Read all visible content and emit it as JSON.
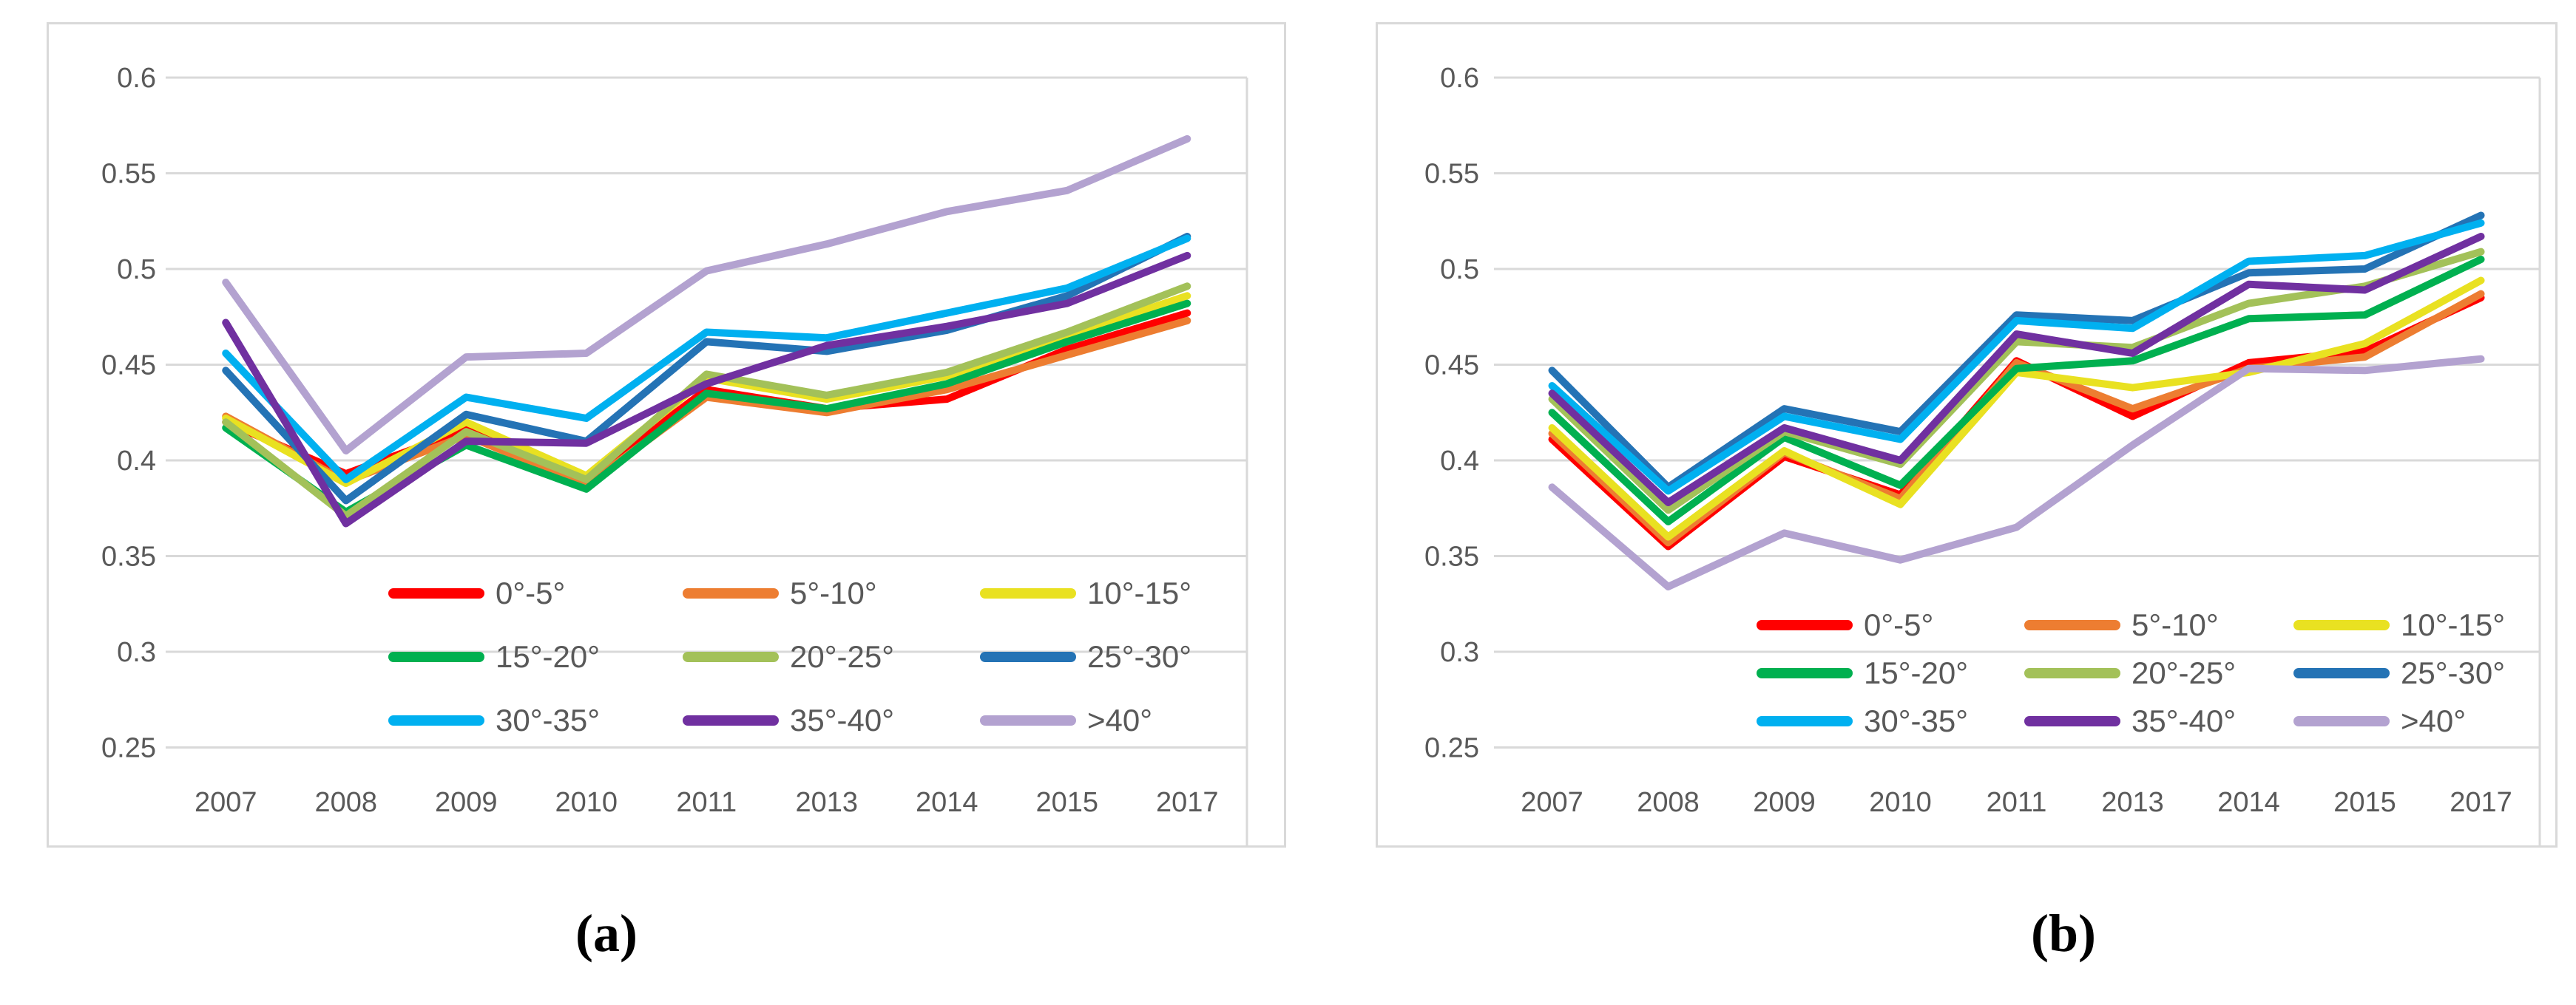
{
  "figure": {
    "background": "#ffffff",
    "grid_color": "#D9D9D9",
    "border_color": "#D9D9D9",
    "tick_color": "#595959",
    "caption_a": "(a)",
    "caption_b": "(b)"
  },
  "chart_data": [
    {
      "id": "a",
      "type": "line",
      "title": "",
      "xlabel": "",
      "ylabel": "",
      "grid": true,
      "legend_position": "inside-bottom",
      "ylim": [
        0.25,
        0.6
      ],
      "y_ticks": [
        "0.6",
        "0.55",
        "0.5",
        "0.45",
        "0.4",
        "0.35",
        "0.3",
        "0.25"
      ],
      "x_categories": [
        "2007",
        "2008",
        "2009",
        "2010",
        "2011",
        "2013",
        "2014",
        "2015",
        "2017"
      ],
      "series": [
        {
          "name": "0°-5°",
          "color": "#FF0000",
          "values": [
            0.42,
            0.393,
            0.416,
            0.39,
            0.437,
            0.427,
            0.432,
            0.458,
            0.477
          ]
        },
        {
          "name": "5°-10°",
          "color": "#ED7D31",
          "values": [
            0.423,
            0.389,
            0.413,
            0.387,
            0.433,
            0.425,
            0.437,
            0.455,
            0.473
          ]
        },
        {
          "name": "10°-15°",
          "color": "#E9E121",
          "values": [
            0.422,
            0.388,
            0.42,
            0.392,
            0.443,
            0.432,
            0.444,
            0.465,
            0.486
          ]
        },
        {
          "name": "15°-20°",
          "color": "#00B050",
          "values": [
            0.417,
            0.373,
            0.408,
            0.385,
            0.435,
            0.427,
            0.44,
            0.462,
            0.482
          ]
        },
        {
          "name": "20°-25°",
          "color": "#A3C159",
          "values": [
            0.42,
            0.371,
            0.415,
            0.39,
            0.445,
            0.434,
            0.446,
            0.467,
            0.491
          ]
        },
        {
          "name": "25°-30°",
          "color": "#2473B5",
          "values": [
            0.447,
            0.379,
            0.424,
            0.41,
            0.462,
            0.457,
            0.468,
            0.486,
            0.517
          ]
        },
        {
          "name": "30°-35°",
          "color": "#00B0F0",
          "values": [
            0.456,
            0.39,
            0.433,
            0.422,
            0.467,
            0.464,
            0.477,
            0.49,
            0.516
          ]
        },
        {
          "name": "35°-40°",
          "color": "#7030A0",
          "values": [
            0.472,
            0.367,
            0.41,
            0.409,
            0.44,
            0.46,
            0.47,
            0.482,
            0.507
          ]
        },
        {
          "name": ">40°",
          "color": "#B3A2D0",
          "values": [
            0.493,
            0.405,
            0.454,
            0.456,
            0.499,
            0.513,
            0.53,
            0.541,
            0.568
          ]
        }
      ]
    },
    {
      "id": "b",
      "type": "line",
      "title": "",
      "xlabel": "",
      "ylabel": "",
      "grid": true,
      "legend_position": "inside-bottom",
      "ylim": [
        0.25,
        0.6
      ],
      "y_ticks": [
        "0.6",
        "0.55",
        "0.5",
        "0.45",
        "0.4",
        "0.35",
        "0.3",
        "0.25"
      ],
      "x_categories": [
        "2007",
        "2008",
        "2009",
        "2010",
        "2011",
        "2013",
        "2014",
        "2015",
        "2017"
      ],
      "series": [
        {
          "name": "0°-5°",
          "color": "#FF0000",
          "values": [
            0.411,
            0.355,
            0.402,
            0.382,
            0.452,
            0.423,
            0.451,
            0.457,
            0.485
          ]
        },
        {
          "name": "5°-10°",
          "color": "#ED7D31",
          "values": [
            0.414,
            0.357,
            0.404,
            0.38,
            0.451,
            0.427,
            0.448,
            0.454,
            0.487
          ]
        },
        {
          "name": "10°-15°",
          "color": "#E9E121",
          "values": [
            0.417,
            0.36,
            0.405,
            0.377,
            0.446,
            0.438,
            0.446,
            0.461,
            0.494
          ]
        },
        {
          "name": "15°-20°",
          "color": "#00B050",
          "values": [
            0.425,
            0.368,
            0.412,
            0.387,
            0.448,
            0.452,
            0.474,
            0.476,
            0.505
          ]
        },
        {
          "name": "20°-25°",
          "color": "#A3C159",
          "values": [
            0.432,
            0.374,
            0.415,
            0.398,
            0.462,
            0.459,
            0.482,
            0.491,
            0.509
          ]
        },
        {
          "name": "25°-30°",
          "color": "#2473B5",
          "values": [
            0.447,
            0.386,
            0.427,
            0.415,
            0.476,
            0.473,
            0.498,
            0.5,
            0.528
          ]
        },
        {
          "name": "30°-35°",
          "color": "#00B0F0",
          "values": [
            0.439,
            0.384,
            0.423,
            0.411,
            0.473,
            0.469,
            0.504,
            0.507,
            0.524
          ]
        },
        {
          "name": "35°-40°",
          "color": "#7030A0",
          "values": [
            0.435,
            0.378,
            0.417,
            0.4,
            0.466,
            0.456,
            0.492,
            0.489,
            0.517
          ]
        },
        {
          "name": ">40°",
          "color": "#B3A2D0",
          "values": [
            0.386,
            0.334,
            0.362,
            0.348,
            0.365,
            0.408,
            0.448,
            0.447,
            0.453
          ]
        }
      ]
    }
  ]
}
